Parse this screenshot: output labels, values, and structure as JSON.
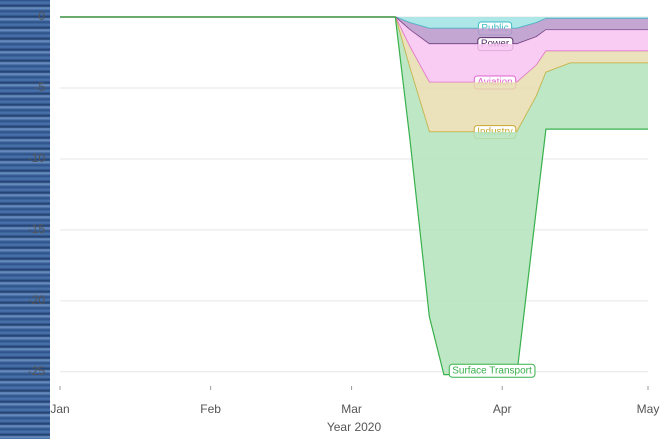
{
  "chart_data": {
    "type": "area",
    "x_label": "Year 2020",
    "x": [
      0,
      69,
      72,
      76,
      79,
      94,
      98,
      100,
      105,
      121
    ],
    "xlim": [
      0,
      121
    ],
    "xticks": [
      {
        "value": 0,
        "label": "Jan"
      },
      {
        "value": 31,
        "label": "Feb"
      },
      {
        "value": 60,
        "label": "Mar"
      },
      {
        "value": 91,
        "label": "Apr"
      },
      {
        "value": 121,
        "label": "May"
      }
    ],
    "ylim": [
      -26,
      1.2
    ],
    "yticks": [
      0,
      -5,
      -10,
      -15,
      -20,
      -25
    ],
    "grid": true,
    "stacked": true,
    "series": [
      {
        "name": "Public",
        "color": "#3cbcc4",
        "fill": "#9fe3e3",
        "values": [
          0,
          0,
          -0.4,
          -0.8,
          -0.8,
          -0.8,
          -0.4,
          -0.1,
          -0.1,
          -0.1
        ]
      },
      {
        "name": "Power",
        "color": "#5c2d6e",
        "fill": "#b897c9",
        "values": [
          0,
          0,
          -0.5,
          -1.1,
          -1.1,
          -1.1,
          -1.0,
          -0.8,
          -0.8,
          -0.8
        ]
      },
      {
        "name": "Aviation",
        "color": "#e060d0",
        "fill": "#f7c3f1",
        "values": [
          0,
          0,
          -1.2,
          -2.7,
          -2.7,
          -2.7,
          -2.0,
          -1.5,
          -1.5,
          -1.5
        ]
      },
      {
        "name": "Industry",
        "color": "#c9a830",
        "fill": "#e8dcae",
        "values": [
          0,
          0,
          -1.5,
          -3.5,
          -3.5,
          -3.5,
          -2.2,
          -1.5,
          -0.85,
          -0.85
        ]
      },
      {
        "name": "Surface Transport",
        "color": "#38b04c",
        "fill": "#b3e3bb",
        "values": [
          0,
          0,
          -5,
          -13,
          -17.1,
          -17.1,
          -8,
          -4,
          -4.65,
          -4.65
        ]
      }
    ]
  }
}
